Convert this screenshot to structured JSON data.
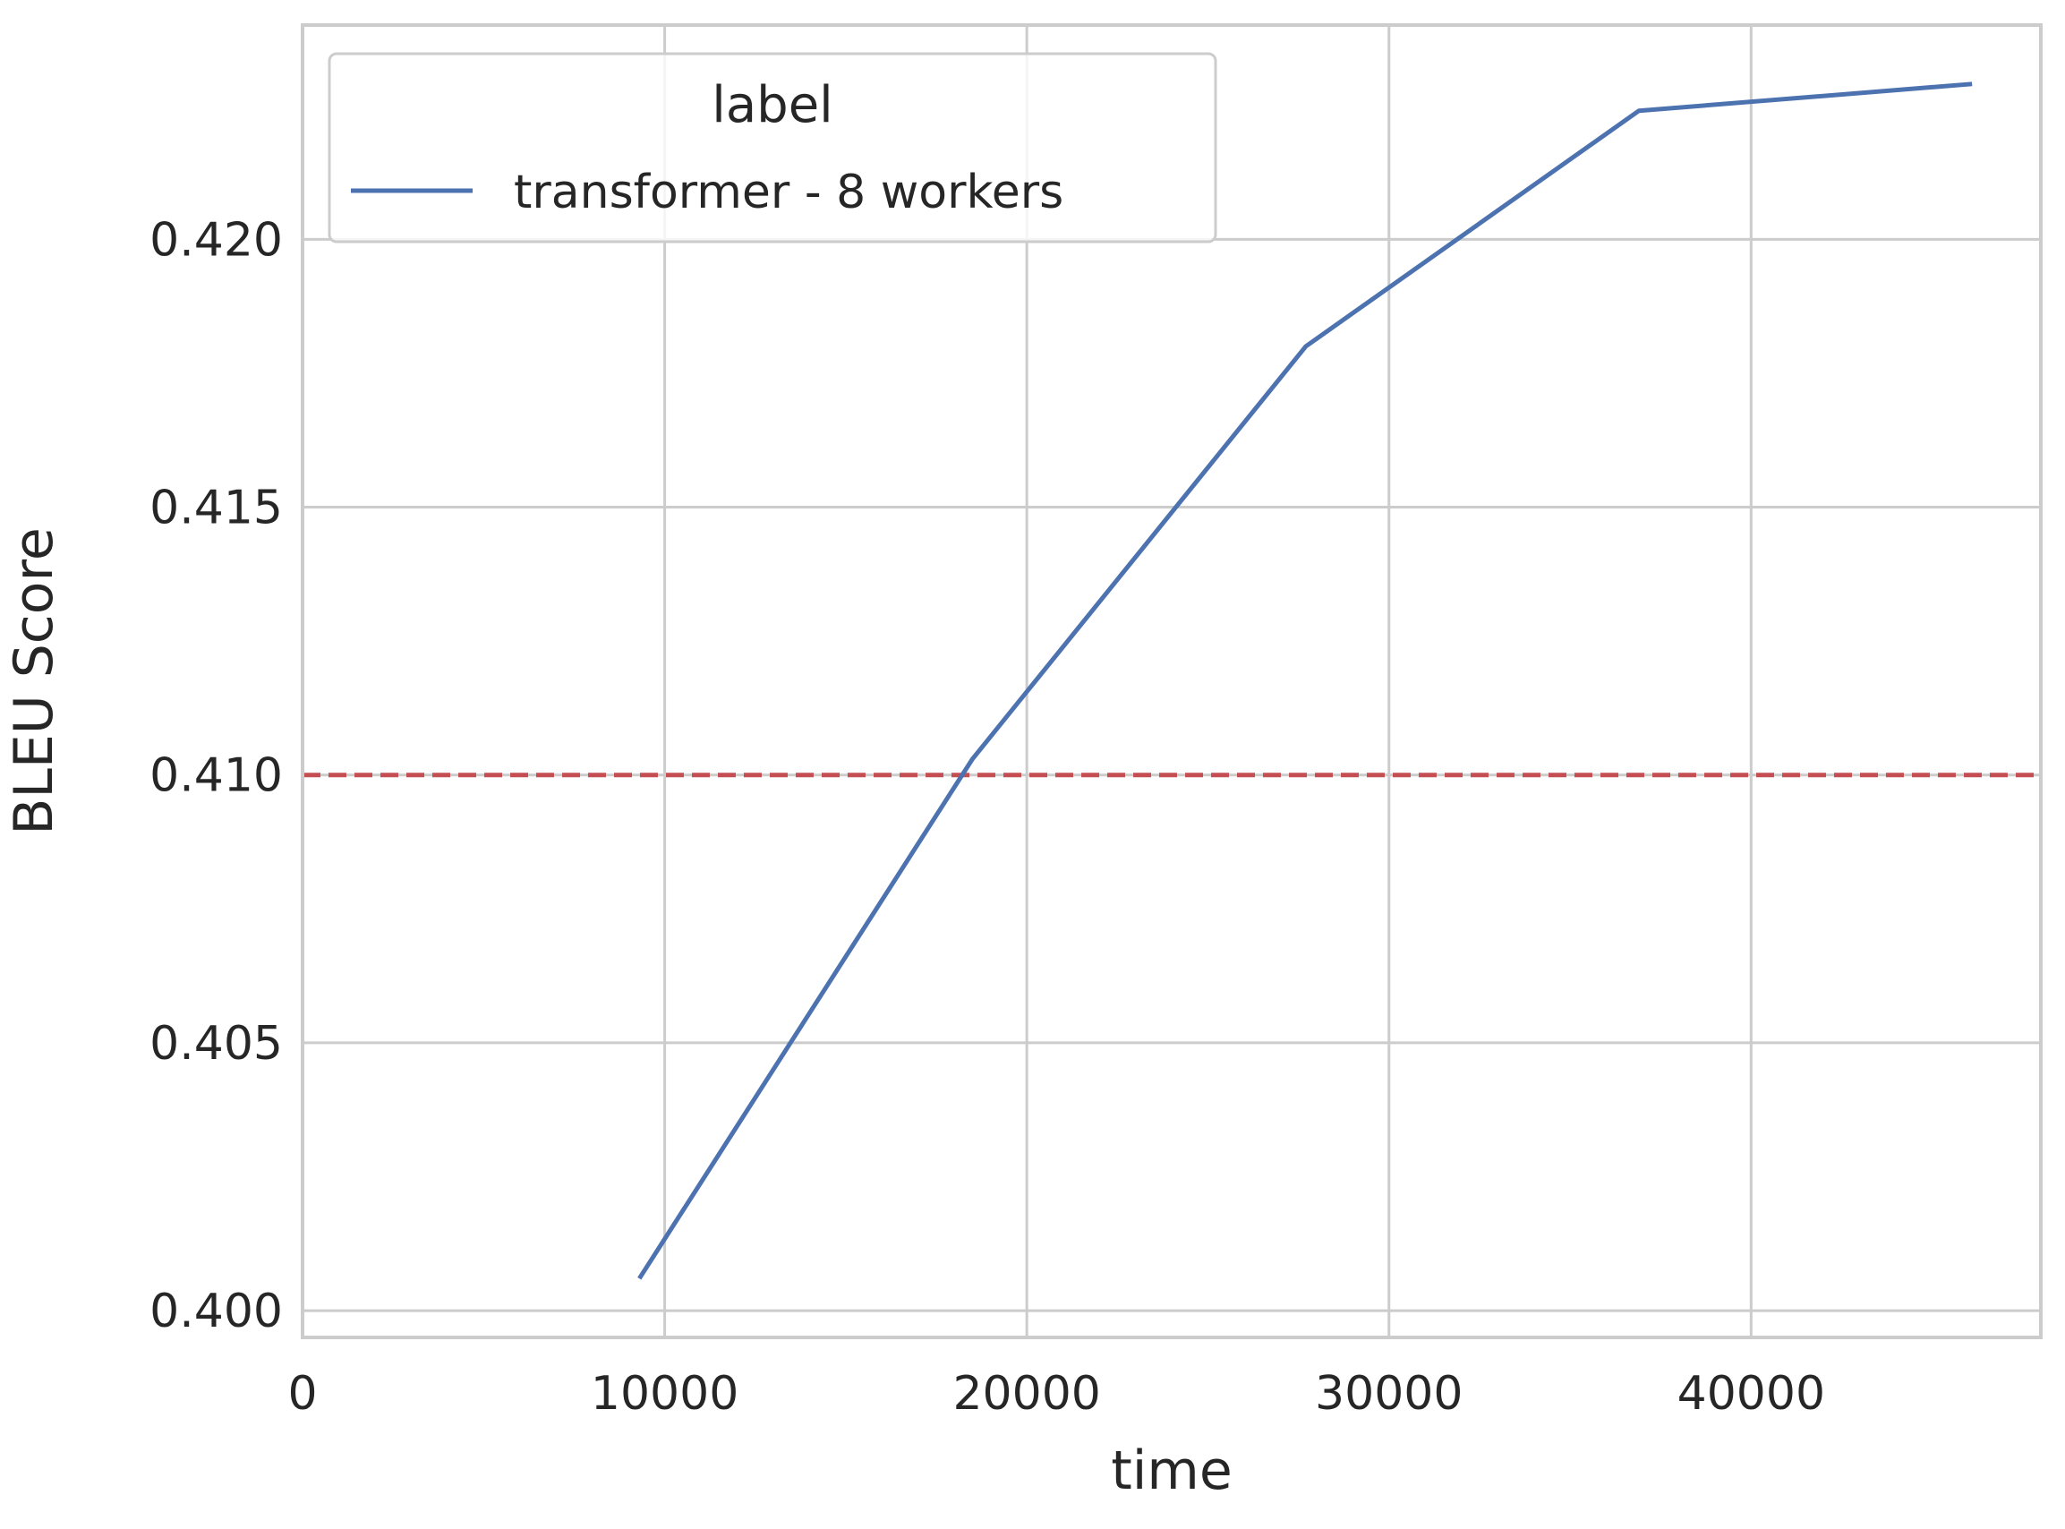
{
  "chart_data": {
    "type": "line",
    "xlabel": "time",
    "ylabel": "BLEU Score",
    "xlim": [
      0,
      48000
    ],
    "ylim": [
      0.3995,
      0.424
    ],
    "xticks": [
      0,
      10000,
      20000,
      30000,
      40000
    ],
    "yticks": [
      0.4,
      0.405,
      0.41,
      0.415,
      0.42
    ],
    "xtick_labels": [
      "0",
      "10000",
      "20000",
      "30000",
      "40000"
    ],
    "ytick_labels": [
      "0.400",
      "0.405",
      "0.410",
      "0.415",
      "0.420"
    ],
    "grid": true,
    "legend": {
      "title": "label",
      "placement": "top-left"
    },
    "series": [
      {
        "name": "transformer - 8 workers",
        "color": "#4c72b0",
        "x": [
          9300,
          18500,
          27700,
          36900,
          46100
        ],
        "y": [
          0.4006,
          0.4103,
          0.418,
          0.4224,
          0.4229
        ]
      }
    ],
    "reference_lines": [
      {
        "orientation": "horizontal",
        "y": 0.41,
        "color": "#c44e52",
        "style": "dashed"
      }
    ]
  }
}
